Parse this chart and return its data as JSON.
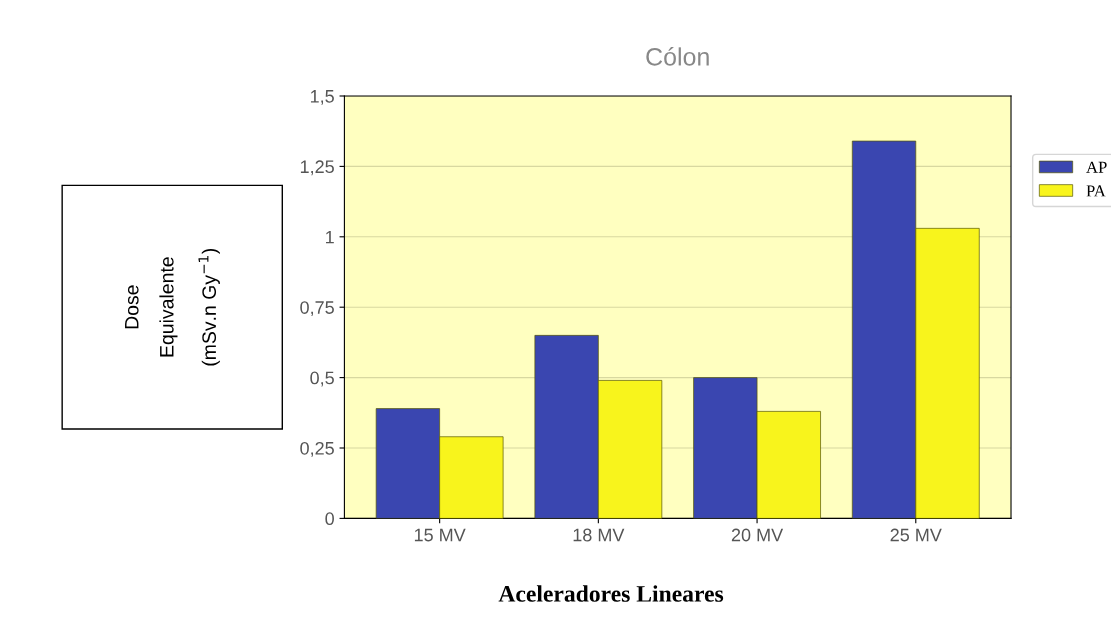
{
  "chart_data": {
    "type": "bar",
    "title": "Cólon",
    "xlabel": "Aceleradores Lineares",
    "ylabel": "Dose\nEquivalente\n(mSv.n Gy$^{−1}$)",
    "categories": [
      "15 MV",
      "18 MV",
      "20 MV",
      "25 MV"
    ],
    "series": [
      {
        "name": "AP",
        "color": "#3a46b0",
        "values": [
          0.39,
          0.65,
          0.5,
          1.34
        ]
      },
      {
        "name": "PA",
        "color": "#f8f41c",
        "values": [
          0.29,
          0.49,
          0.38,
          1.03
        ]
      }
    ],
    "ylim": [
      0,
      1.5
    ],
    "yticks": [
      0,
      {
        "value": 0.25,
        "label": "0,25"
      },
      {
        "value": 0.5,
        "label": "0,5"
      },
      {
        "value": 0.75,
        "label": "0,75"
      },
      1,
      {
        "value": 1.25,
        "label": "1,25"
      },
      {
        "value": 1.5,
        "label": "1,5"
      }
    ],
    "grid": "y",
    "legend": "right"
  }
}
